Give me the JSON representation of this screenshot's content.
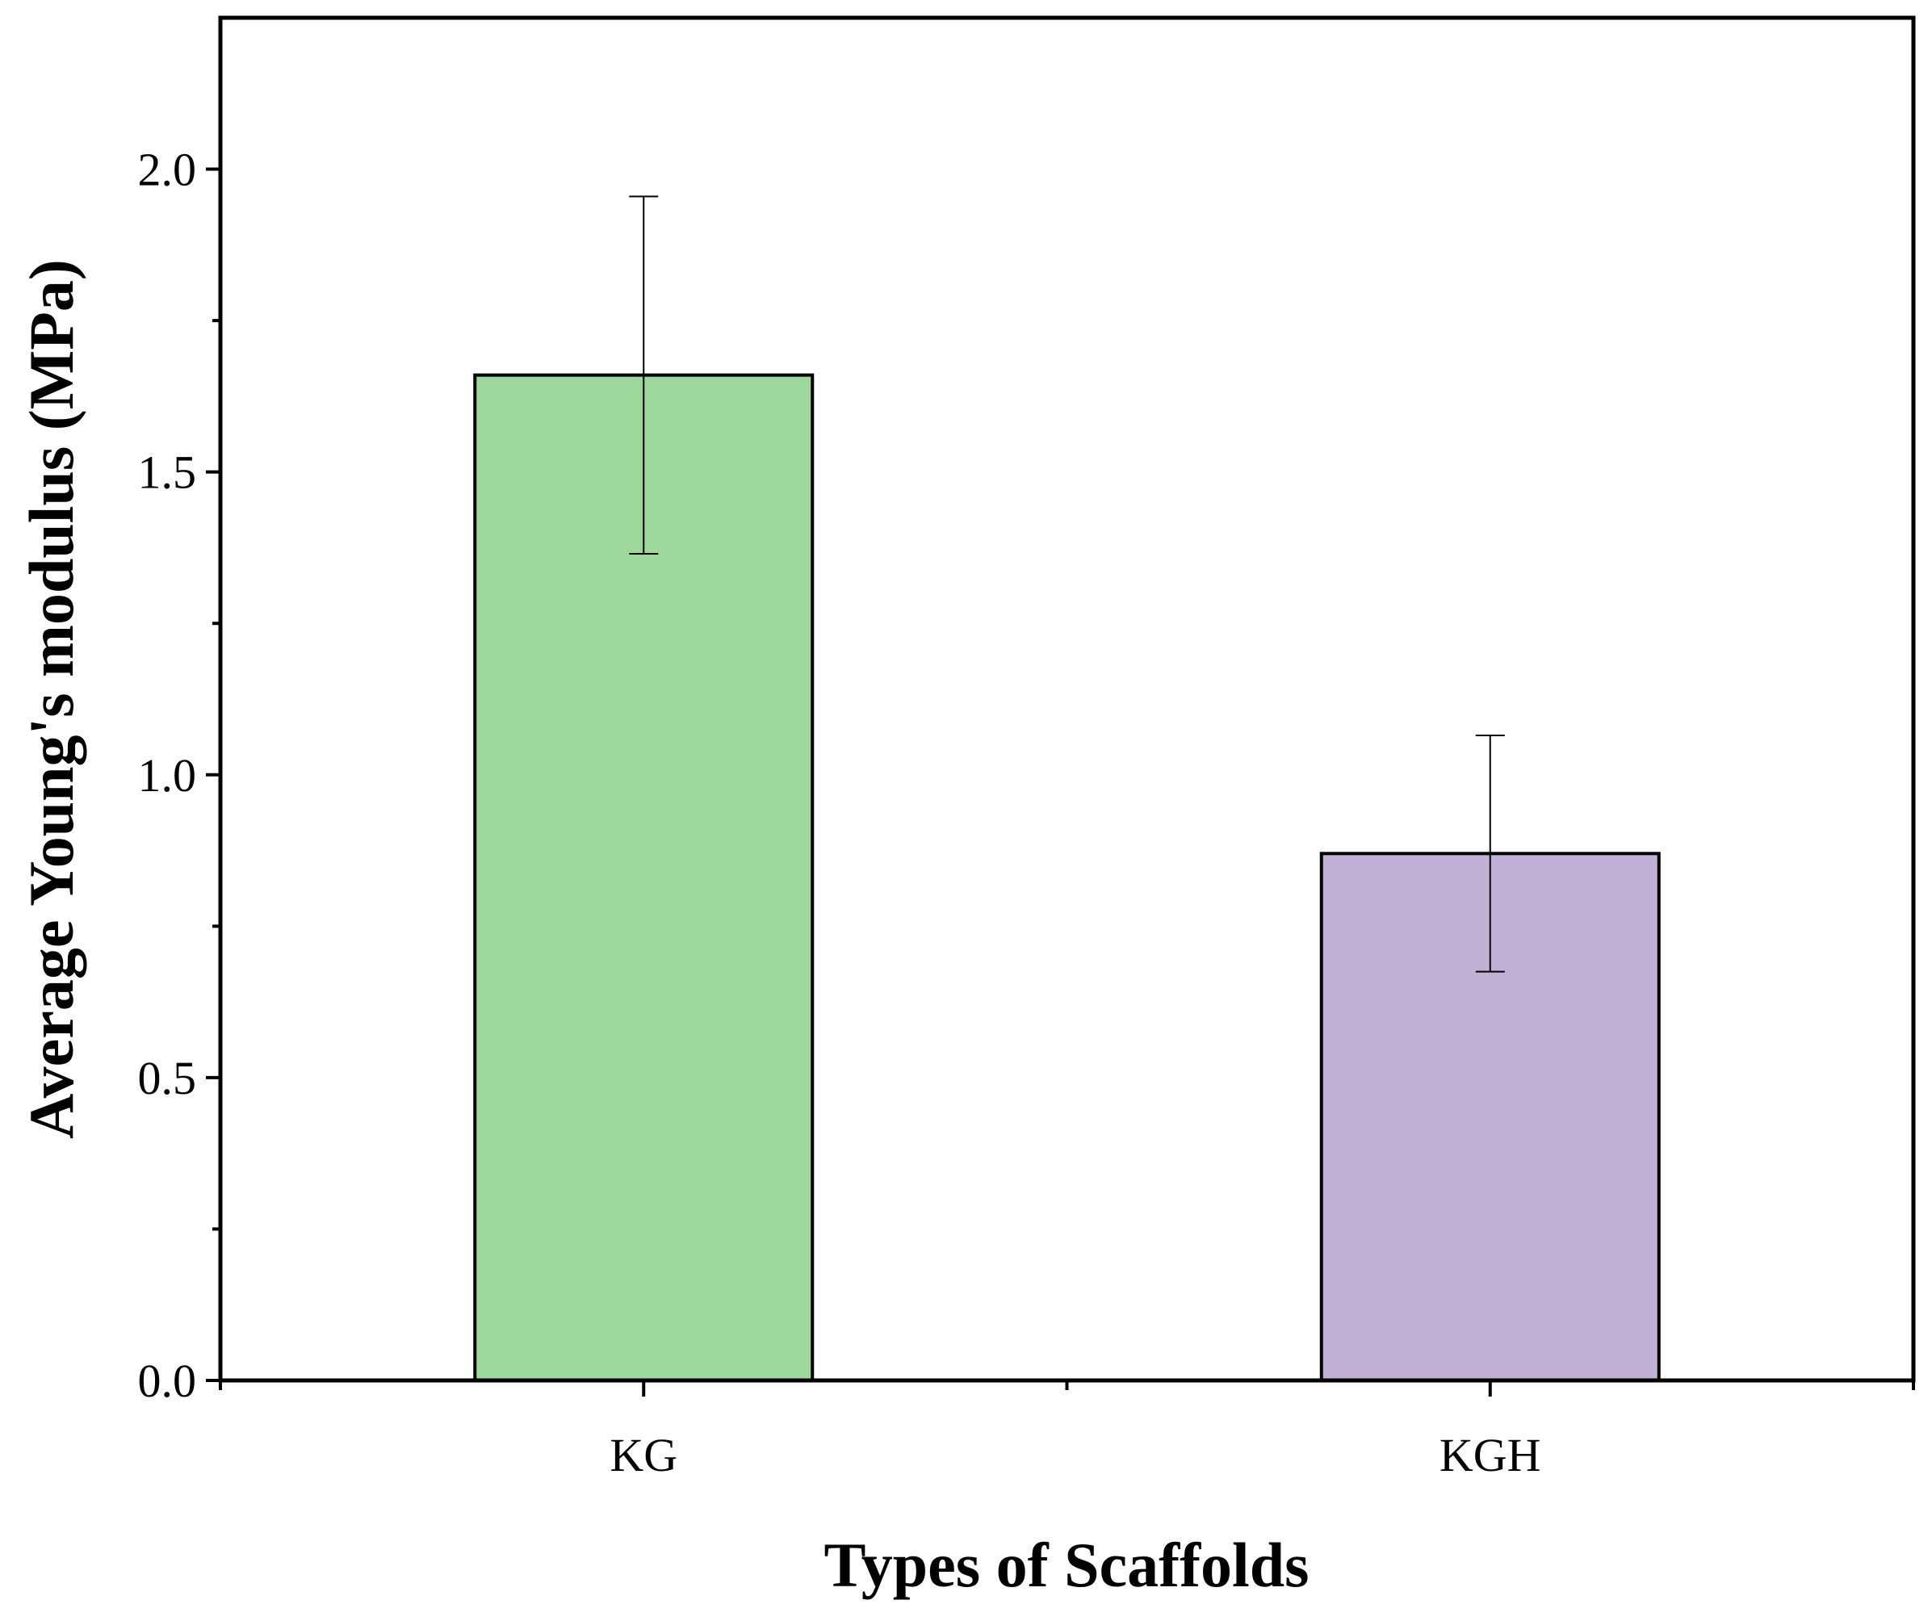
{
  "chart_data": {
    "type": "bar",
    "title": "",
    "xlabel": "Types of Scaffolds",
    "ylabel": "Average Young's modulus (MPa)",
    "categories": [
      "KG",
      "KGH"
    ],
    "values": [
      1.66,
      0.87
    ],
    "errors": [
      0.295,
      0.195
    ],
    "colors": [
      "#9ed79c",
      "#c2b1d6"
    ],
    "ylim": [
      0,
      2.25
    ],
    "yticks": [
      0.0,
      0.5,
      1.0,
      1.5,
      2.0
    ],
    "ytick_labels": [
      "0.0",
      "0.5",
      "1.0",
      "1.5",
      "2.0"
    ],
    "grid": false,
    "legend": "none"
  }
}
